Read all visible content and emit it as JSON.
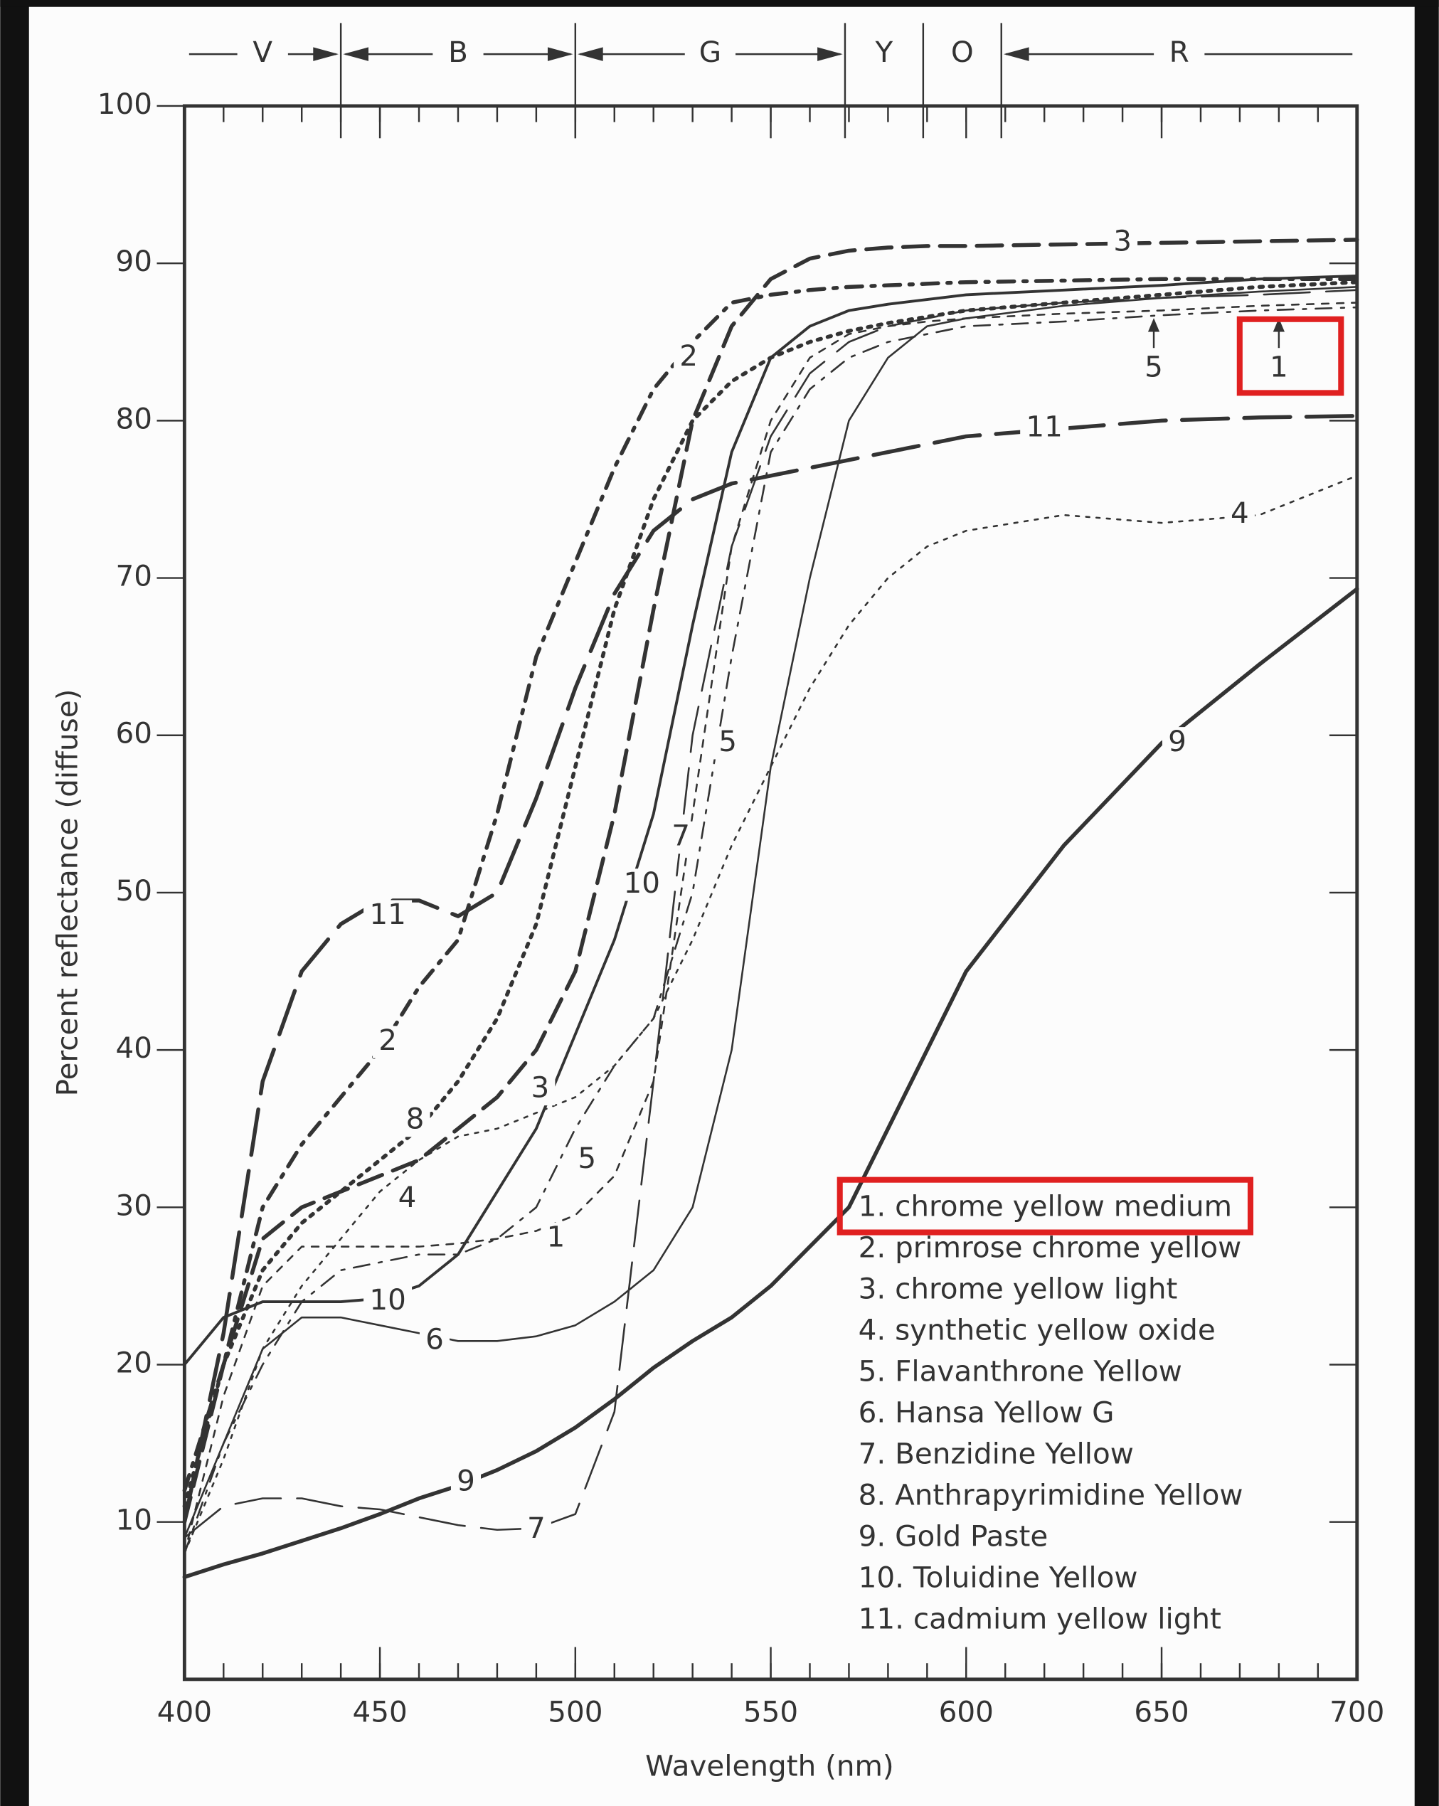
{
  "chart_data": {
    "type": "line",
    "xlabel": "Wavelength (nm)",
    "ylabel": "Percent reflectance (diffuse)",
    "xlim": [
      400,
      700
    ],
    "ylim": [
      0,
      100
    ],
    "xticks": [
      400,
      450,
      500,
      550,
      600,
      650,
      700
    ],
    "yticks": [
      10,
      20,
      30,
      40,
      50,
      60,
      70,
      80,
      90,
      100
    ],
    "x_minor_step": 10,
    "grid": false,
    "legend": "lower right",
    "bands": [
      {
        "label": "V",
        "start": 400,
        "end": 440
      },
      {
        "label": "B",
        "start": 440,
        "end": 500
      },
      {
        "label": "G",
        "start": 500,
        "end": 569
      },
      {
        "label": "Y",
        "start": 569,
        "end": 589
      },
      {
        "label": "O",
        "start": 589,
        "end": 609
      },
      {
        "label": "R",
        "start": 609,
        "end": 700
      }
    ],
    "x": [
      400,
      410,
      420,
      430,
      440,
      450,
      460,
      470,
      480,
      490,
      500,
      510,
      520,
      530,
      540,
      550,
      560,
      570,
      580,
      590,
      600,
      625,
      650,
      675,
      700
    ],
    "series": [
      {
        "name": "1. chrome yellow medium",
        "color": "#333333",
        "line_style": "short-dashed",
        "line_width": "thin",
        "values": [
          8,
          18,
          25,
          27.5,
          27.5,
          27.5,
          27.5,
          27.7,
          28,
          28.5,
          29.5,
          32,
          38,
          55,
          72,
          80,
          84,
          85.5,
          86,
          86.3,
          86.5,
          86.8,
          87,
          87.3,
          87.5
        ]
      },
      {
        "name": "2. primrose chrome yellow",
        "color": "#333333",
        "line_style": "dash-dot",
        "line_width": "thick",
        "values": [
          12,
          20,
          30,
          34,
          37,
          40,
          44,
          47,
          55,
          65,
          71,
          77,
          82,
          85,
          87.5,
          88,
          88.3,
          88.5,
          88.6,
          88.7,
          88.8,
          88.9,
          89,
          89,
          89
        ]
      },
      {
        "name": "3. chrome yellow light",
        "color": "#333333",
        "line_style": "dashed",
        "line_width": "thick",
        "values": [
          10,
          20,
          28,
          30,
          31,
          32,
          33,
          35,
          37,
          40,
          45,
          55,
          68,
          80,
          86,
          89,
          90.3,
          90.8,
          91,
          91.1,
          91.1,
          91.2,
          91.3,
          91.4,
          91.5
        ]
      },
      {
        "name": "4. synthetic yellow oxide",
        "color": "#333333",
        "line_style": "dotted",
        "line_width": "thin",
        "values": [
          8,
          14,
          21,
          25,
          28,
          31,
          33,
          34.5,
          35,
          36,
          37,
          39,
          42,
          47,
          53,
          58,
          63,
          67,
          70,
          72,
          73,
          74,
          73.5,
          74,
          76.5
        ]
      },
      {
        "name": "5. Flavanthrone Yellow",
        "color": "#333333",
        "line_style": "dash-dot",
        "line_width": "thin",
        "values": [
          8,
          15,
          20,
          24,
          26,
          26.5,
          27,
          27,
          28,
          30,
          35,
          39,
          42,
          50,
          65,
          78,
          82,
          84,
          85,
          85.5,
          86,
          86.3,
          86.7,
          87,
          87.2
        ]
      },
      {
        "name": "6. Hansa Yellow G",
        "color": "#333333",
        "line_style": "solid",
        "line_width": "thin",
        "values": [
          9,
          15,
          21,
          23,
          23,
          22.5,
          22,
          21.5,
          21.5,
          21.8,
          22.5,
          24,
          26,
          30,
          40,
          58,
          70,
          80,
          84,
          86,
          86.5,
          87.3,
          87.8,
          88.2,
          88.5
        ]
      },
      {
        "name": "7. Benzidine Yellow",
        "color": "#333333",
        "line_style": "long-dashed",
        "line_width": "thin",
        "values": [
          9,
          11,
          11.5,
          11.5,
          11,
          10.8,
          10.3,
          9.8,
          9.5,
          9.6,
          10.5,
          17,
          38,
          60,
          72,
          79,
          83,
          85,
          86,
          86.5,
          87,
          87.5,
          87.8,
          88,
          88.3
        ]
      },
      {
        "name": "8. Anthrapyrimidine Yellow",
        "color": "#333333",
        "line_style": "dotted",
        "line_width": "thick",
        "values": [
          11,
          20,
          26,
          29,
          31,
          33,
          35,
          38,
          42,
          48,
          58,
          68,
          75,
          80,
          82.5,
          84,
          85,
          85.7,
          86.2,
          86.6,
          87,
          87.5,
          88,
          88.5,
          88.8
        ]
      },
      {
        "name": "9. Gold Paste",
        "color": "#333333",
        "line_style": "solid",
        "line_width": "thick",
        "values": [
          6.5,
          7.3,
          8,
          8.8,
          9.6,
          10.5,
          11.5,
          12.3,
          13.3,
          14.5,
          16,
          17.8,
          19.8,
          21.5,
          23,
          25,
          27.5,
          30,
          35,
          40,
          45,
          53,
          59.5,
          64.5,
          69.3
        ]
      },
      {
        "name": "10. Toluidine Yellow",
        "color": "#333333",
        "line_style": "solid",
        "line_width": "medium",
        "values": [
          20,
          23,
          24,
          24,
          24,
          24.2,
          25,
          27,
          31,
          35,
          41,
          47,
          55,
          67,
          78,
          84,
          86,
          87,
          87.4,
          87.7,
          88,
          88.3,
          88.6,
          89,
          89.2
        ]
      },
      {
        "name": "11. cadmium yellow light",
        "color": "#333333",
        "line_style": "long-dashed",
        "line_width": "thick",
        "values": [
          10,
          22,
          38,
          45,
          48,
          49.5,
          49.5,
          48.5,
          50,
          56,
          63,
          69,
          73,
          75,
          76,
          76.5,
          77,
          77.5,
          78,
          78.5,
          79,
          79.5,
          80,
          80.2,
          80.3
        ]
      }
    ],
    "annotations": [
      {
        "text": "3",
        "x": 640,
        "y": 91.3
      },
      {
        "text": "2",
        "x": 529,
        "y": 84
      },
      {
        "text": "5",
        "x": 648,
        "y": 83.3,
        "arrow": true
      },
      {
        "text": "1",
        "x": 680,
        "y": 83.3,
        "arrow": true,
        "highlight": true
      },
      {
        "text": "11",
        "x": 620,
        "y": 79.5
      },
      {
        "text": "4",
        "x": 670,
        "y": 74
      },
      {
        "text": "9",
        "x": 654,
        "y": 59.5
      },
      {
        "text": "5",
        "x": 539,
        "y": 59.5
      },
      {
        "text": "7",
        "x": 527,
        "y": 53.5
      },
      {
        "text": "10",
        "x": 517,
        "y": 50.5
      },
      {
        "text": "11",
        "x": 452,
        "y": 48.5
      },
      {
        "text": "2",
        "x": 452,
        "y": 40.5
      },
      {
        "text": "8",
        "x": 459,
        "y": 35.5
      },
      {
        "text": "3",
        "x": 491,
        "y": 37.5
      },
      {
        "text": "4",
        "x": 457,
        "y": 30.5
      },
      {
        "text": "5",
        "x": 503,
        "y": 33
      },
      {
        "text": "1",
        "x": 495,
        "y": 28
      },
      {
        "text": "10",
        "x": 452,
        "y": 24
      },
      {
        "text": "6",
        "x": 464,
        "y": 21.5
      },
      {
        "text": "9",
        "x": 472,
        "y": 12.5
      },
      {
        "text": "7",
        "x": 490,
        "y": 9.5
      }
    ],
    "legend_highlight": 0
  }
}
